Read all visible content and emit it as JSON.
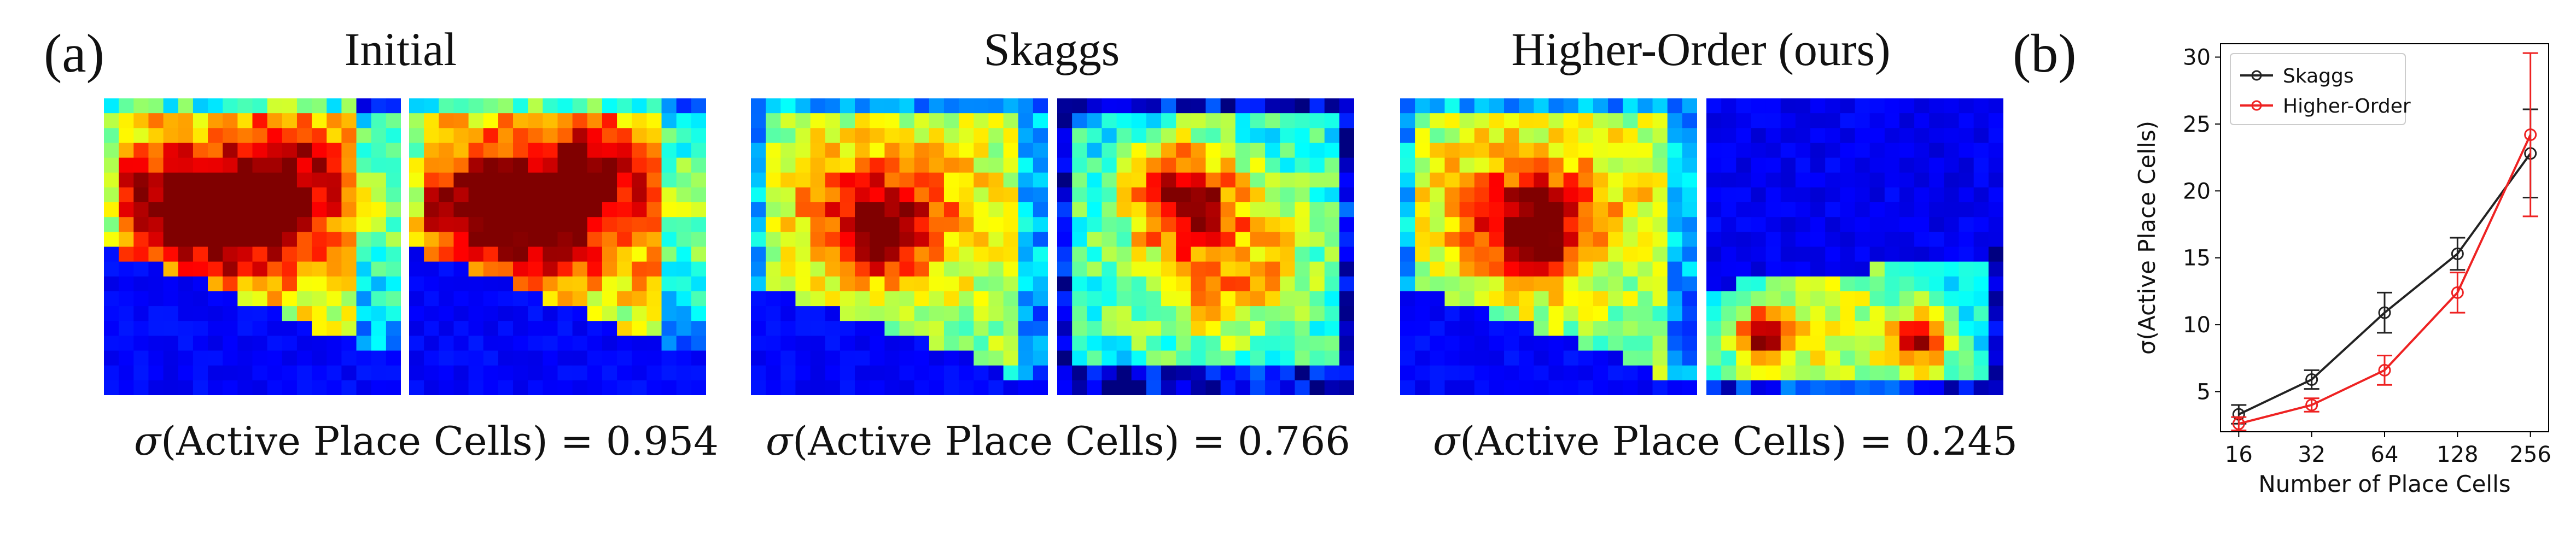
{
  "panel_a": {
    "label": "(a)",
    "groups": [
      {
        "title": "Initial",
        "caption_prefix": "σ",
        "caption_text": "(Active Place Cells) = ",
        "sigma_value": "0.954",
        "maps": [
          "rate-map-initial-1",
          "rate-map-initial-2"
        ]
      },
      {
        "title": "Skaggs",
        "caption_prefix": "σ",
        "caption_text": "(Active Place Cells) = ",
        "sigma_value": "0.766",
        "maps": [
          "rate-map-skaggs-1",
          "rate-map-skaggs-2"
        ]
      },
      {
        "title": "Higher-Order (ours)",
        "caption_prefix": "σ",
        "caption_text": "(Active Place Cells) = ",
        "sigma_value": "0.245",
        "maps": [
          "rate-map-higher-order-1",
          "rate-map-higher-order-2"
        ]
      }
    ]
  },
  "panel_b": {
    "label": "(b)"
  },
  "chart_data": {
    "type": "line",
    "x_scale": "log2",
    "x": [
      16,
      32,
      64,
      128,
      256
    ],
    "xticklabels": [
      "16",
      "32",
      "64",
      "128",
      "256"
    ],
    "xlabel": "Number of Place Cells",
    "ylabel": "σ(Active Place Cells)",
    "ylim": [
      2,
      31
    ],
    "yticks": [
      5,
      10,
      15,
      20,
      25,
      30
    ],
    "legend_position": "top-left",
    "series": [
      {
        "name": "Skaggs",
        "color": "#222222",
        "values": [
          3.3,
          5.9,
          10.9,
          15.3,
          22.8
        ],
        "err": [
          0.7,
          0.7,
          1.5,
          1.2,
          3.3
        ]
      },
      {
        "name": "Higher-Order",
        "color": "#ee2222",
        "values": [
          2.6,
          4.0,
          6.6,
          12.4,
          24.2
        ],
        "err": [
          0.5,
          0.5,
          1.1,
          1.5,
          6.1
        ]
      }
    ]
  }
}
